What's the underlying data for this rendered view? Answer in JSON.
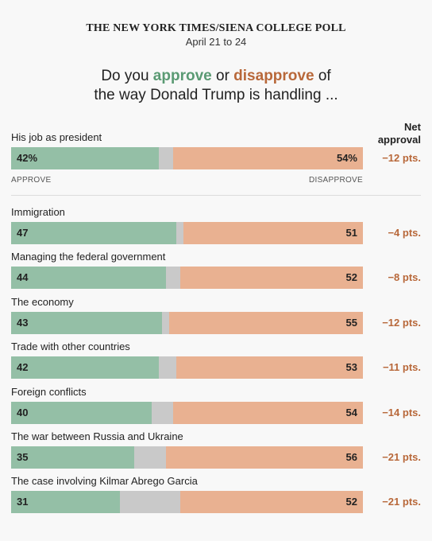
{
  "header": {
    "source": "THE NEW YORK TIMES/SIENA COLLEGE POLL",
    "dates": "April 21 to 24"
  },
  "question": {
    "line1_prefix": "Do you ",
    "approve_word": "approve",
    "connector": " or ",
    "disapprove_word": "disapprove",
    "line1_suffix": " of",
    "line2": "the way Donald Trump is handling ..."
  },
  "net_header": {
    "line1": "Net",
    "line2": "approval"
  },
  "scale": {
    "left": "APPROVE",
    "right": "DISAPPROVE"
  },
  "colors": {
    "approve": "#94bfa6",
    "no_opinion": "#c9c9c9",
    "disapprove": "#e9b191",
    "approve_text": "#5a9a73",
    "disapprove_text": "#b8683a"
  },
  "chart_data": {
    "type": "bar",
    "stacked": true,
    "orientation": "horizontal",
    "categories": [
      "His job as president",
      "Immigration",
      "Managing the federal government",
      "The economy",
      "Trade with other countries",
      "Foreign conflicts",
      "The war between Russia and Ukraine",
      "The case involving Kilmar Abrego Garcia"
    ],
    "series": [
      {
        "name": "APPROVE",
        "values": [
          42,
          47,
          44,
          43,
          42,
          40,
          35,
          31
        ]
      },
      {
        "name": "DISAPPROVE",
        "values": [
          54,
          51,
          52,
          55,
          53,
          54,
          56,
          52
        ]
      }
    ],
    "labels": {
      "approve": [
        "42%",
        "47",
        "44",
        "43",
        "42",
        "40",
        "35",
        "31"
      ],
      "disapprove": [
        "54%",
        "51",
        "52",
        "55",
        "53",
        "54",
        "56",
        "52"
      ],
      "net": [
        "−12 pts.",
        "−4 pts.",
        "−8 pts.",
        "−12 pts.",
        "−11 pts.",
        "−14 pts.",
        "−21 pts.",
        "−21 pts."
      ]
    },
    "xlim": [
      0,
      100
    ]
  }
}
